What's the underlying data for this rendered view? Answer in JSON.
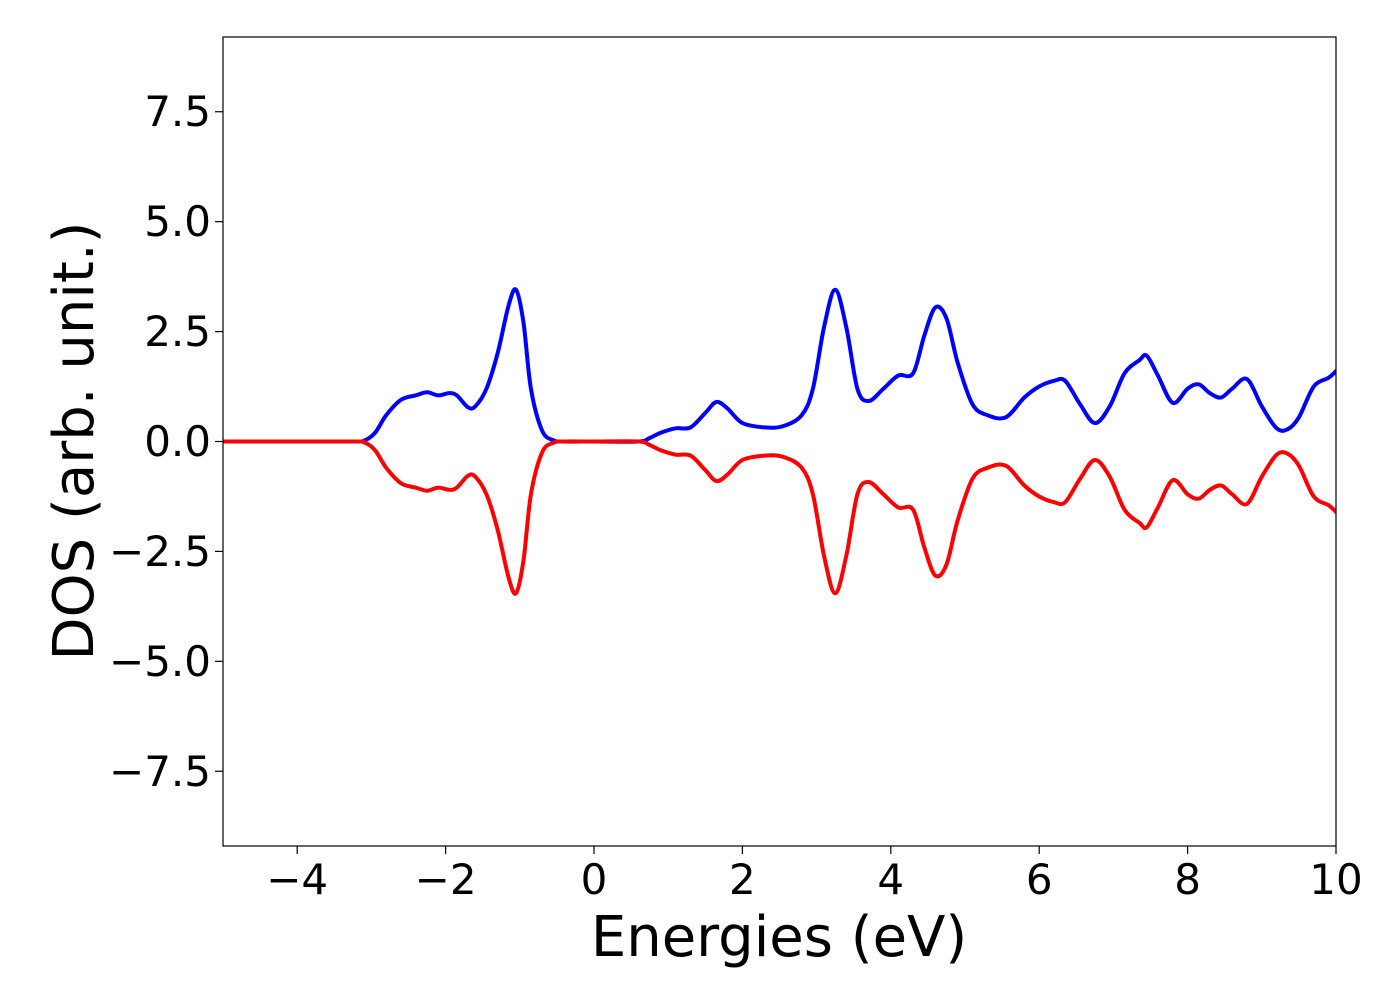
{
  "chart_data": {
    "type": "line",
    "xlabel": "Energies (eV)",
    "ylabel": "DOS (arb. unit.)",
    "xlim": [
      -5,
      10
    ],
    "ylim": [
      -9.2,
      9.2
    ],
    "xticks": [
      -4,
      -2,
      0,
      2,
      4,
      6,
      8,
      10
    ],
    "xtick_labels": [
      "−4",
      "−2",
      "0",
      "2",
      "4",
      "6",
      "8",
      "10"
    ],
    "yticks": [
      -7.5,
      -5.0,
      -2.5,
      0.0,
      2.5,
      5.0,
      7.5
    ],
    "ytick_labels": [
      "−7.5",
      "−5.0",
      "−2.5",
      "0.0",
      "2.5",
      "5.0",
      "7.5"
    ],
    "grid": false,
    "series": [
      {
        "color": "#0000ff",
        "x": [
          -5,
          -3.3,
          -3.1,
          -2.95,
          -2.8,
          -2.6,
          -2.4,
          -2.25,
          -2.1,
          -1.95,
          -1.85,
          -1.7,
          -1.6,
          -1.45,
          -1.3,
          -1.15,
          -1.05,
          -0.95,
          -0.85,
          -0.7,
          -0.55,
          -0.4,
          0,
          0.6,
          0.75,
          0.9,
          1.1,
          1.3,
          1.5,
          1.65,
          1.8,
          2.0,
          2.3,
          2.55,
          2.8,
          2.95,
          3.1,
          3.25,
          3.4,
          3.55,
          3.7,
          3.9,
          4.1,
          4.3,
          4.45,
          4.6,
          4.75,
          4.9,
          5.1,
          5.3,
          5.55,
          5.8,
          6.0,
          6.2,
          6.35,
          6.55,
          6.75,
          6.95,
          7.15,
          7.35,
          7.45,
          7.6,
          7.8,
          8.0,
          8.15,
          8.3,
          8.45,
          8.6,
          8.8,
          9.0,
          9.2,
          9.35,
          9.5,
          9.7,
          9.9,
          10
        ],
        "y": [
          0,
          0,
          0.02,
          0.2,
          0.6,
          0.95,
          1.05,
          1.12,
          1.05,
          1.1,
          1.05,
          0.78,
          0.8,
          1.2,
          2.0,
          3.1,
          3.45,
          2.7,
          1.2,
          0.25,
          0.03,
          0,
          0,
          0,
          0.08,
          0.2,
          0.3,
          0.32,
          0.65,
          0.9,
          0.75,
          0.42,
          0.32,
          0.35,
          0.6,
          1.2,
          2.6,
          3.45,
          2.6,
          1.2,
          0.92,
          1.2,
          1.5,
          1.55,
          2.4,
          3.05,
          2.8,
          1.8,
          0.85,
          0.6,
          0.55,
          1.0,
          1.25,
          1.38,
          1.38,
          0.85,
          0.42,
          0.8,
          1.55,
          1.85,
          1.95,
          1.5,
          0.88,
          1.2,
          1.3,
          1.1,
          1.0,
          1.2,
          1.42,
          0.8,
          0.3,
          0.28,
          0.55,
          1.25,
          1.45,
          1.6
        ]
      },
      {
        "color": "#ff0000",
        "x": [
          -5,
          -3.3,
          -3.1,
          -2.95,
          -2.8,
          -2.6,
          -2.4,
          -2.25,
          -2.1,
          -1.95,
          -1.85,
          -1.7,
          -1.6,
          -1.45,
          -1.3,
          -1.15,
          -1.05,
          -0.95,
          -0.85,
          -0.7,
          -0.55,
          -0.4,
          0,
          0.6,
          0.75,
          0.9,
          1.1,
          1.3,
          1.5,
          1.65,
          1.8,
          2.0,
          2.3,
          2.55,
          2.8,
          2.95,
          3.1,
          3.25,
          3.4,
          3.55,
          3.7,
          3.9,
          4.1,
          4.3,
          4.45,
          4.6,
          4.75,
          4.9,
          5.1,
          5.3,
          5.55,
          5.8,
          6.0,
          6.2,
          6.35,
          6.55,
          6.75,
          6.95,
          7.15,
          7.35,
          7.45,
          7.6,
          7.8,
          8.0,
          8.15,
          8.3,
          8.45,
          8.6,
          8.8,
          9.0,
          9.2,
          9.35,
          9.5,
          9.7,
          9.9,
          10
        ],
        "y": [
          0,
          0,
          -0.02,
          -0.2,
          -0.6,
          -0.95,
          -1.05,
          -1.12,
          -1.05,
          -1.1,
          -1.05,
          -0.78,
          -0.8,
          -1.2,
          -2.0,
          -3.1,
          -3.45,
          -2.7,
          -1.2,
          -0.25,
          -0.03,
          0,
          0,
          0,
          -0.08,
          -0.2,
          -0.3,
          -0.32,
          -0.65,
          -0.9,
          -0.75,
          -0.42,
          -0.32,
          -0.35,
          -0.6,
          -1.2,
          -2.6,
          -3.45,
          -2.6,
          -1.2,
          -0.92,
          -1.2,
          -1.5,
          -1.55,
          -2.4,
          -3.05,
          -2.8,
          -1.8,
          -0.85,
          -0.6,
          -0.55,
          -1.0,
          -1.25,
          -1.38,
          -1.38,
          -0.85,
          -0.42,
          -0.8,
          -1.55,
          -1.85,
          -1.95,
          -1.5,
          -0.88,
          -1.2,
          -1.3,
          -1.1,
          -1.0,
          -1.2,
          -1.42,
          -0.8,
          -0.3,
          -0.28,
          -0.55,
          -1.25,
          -1.45,
          -1.6
        ]
      }
    ]
  }
}
